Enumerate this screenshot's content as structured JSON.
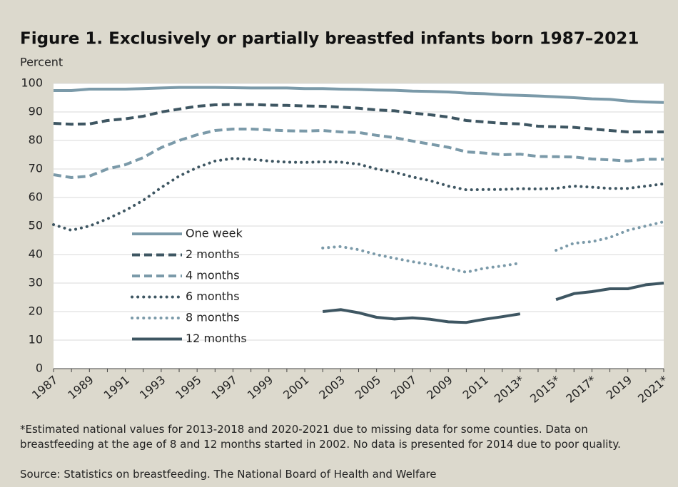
{
  "chart_data": {
    "type": "line",
    "title": "Figure 1. Exclusively or partially breastfed infants born 1987–2021",
    "y_label": "Percent",
    "categories": [
      "1987",
      null,
      "1989",
      null,
      "1991",
      null,
      "1993",
      null,
      "1995",
      null,
      "1997",
      null,
      "1999",
      null,
      "2001",
      null,
      "2003",
      null,
      "2005",
      null,
      "2007",
      null,
      "2009",
      null,
      "2011",
      null,
      "2013*",
      null,
      "2015*",
      null,
      "2017*",
      null,
      "2019",
      null,
      "2021*"
    ],
    "series": [
      {
        "name": "One week",
        "color": "#7b9aa9",
        "style": "solid",
        "values": [
          97.5,
          97.5,
          98,
          98,
          98,
          98.2,
          98.4,
          98.6,
          98.6,
          98.6,
          98.5,
          98.4,
          98.4,
          98.4,
          98.2,
          98.2,
          98,
          97.9,
          97.7,
          97.6,
          97.3,
          97.2,
          97,
          96.6,
          96.4,
          96,
          95.8,
          95.6,
          95.3,
          95,
          94.6,
          94.4,
          93.8,
          93.5,
          93.3
        ]
      },
      {
        "name": "2 months",
        "color": "#3e5662",
        "style": "dashed",
        "values": [
          86,
          85.7,
          85.8,
          87,
          87.6,
          88.5,
          90,
          91,
          92,
          92.5,
          92.6,
          92.6,
          92.4,
          92.3,
          92.1,
          92,
          91.7,
          91.3,
          90.7,
          90.4,
          89.6,
          89,
          88.2,
          87,
          86.5,
          86,
          85.8,
          85,
          84.8,
          84.6,
          84,
          83.5,
          83,
          83,
          83
        ]
      },
      {
        "name": "4 months",
        "color": "#7b9aa9",
        "style": "dashed",
        "values": [
          68,
          67,
          67.5,
          70,
          71.5,
          74,
          77.5,
          80,
          82,
          83.5,
          84,
          84,
          83.7,
          83.4,
          83.3,
          83.5,
          83,
          82.8,
          81.8,
          81,
          79.8,
          78.7,
          77.6,
          76,
          75.6,
          75,
          75.2,
          74.4,
          74.3,
          74.2,
          73.5,
          73.2,
          72.8,
          73.4,
          73.4
        ]
      },
      {
        "name": "6 months",
        "color": "#3e5662",
        "style": "dotted",
        "values": [
          50.5,
          48.5,
          50,
          52.5,
          55.5,
          59,
          63.5,
          67.5,
          70.5,
          72.8,
          73.7,
          73.4,
          72.8,
          72.4,
          72.3,
          72.5,
          72.4,
          71.7,
          70,
          68.9,
          67.2,
          65.9,
          64,
          62.7,
          62.8,
          62.8,
          63.1,
          63,
          63.2,
          64,
          63.6,
          63.2,
          63.2,
          64,
          64.8
        ]
      },
      {
        "name": "8 months",
        "color": "#7b9aa9",
        "style": "dotted",
        "values": [
          null,
          null,
          null,
          null,
          null,
          null,
          null,
          null,
          null,
          null,
          null,
          null,
          null,
          null,
          null,
          42.3,
          42.8,
          41.7,
          40,
          38.7,
          37.5,
          36.5,
          35.2,
          33.8,
          35.2,
          36,
          37,
          null,
          41.5,
          44,
          44.5,
          46,
          48.5,
          50,
          51.5
        ]
      },
      {
        "name": "12 months",
        "color": "#3e5662",
        "style": "solid",
        "values": [
          null,
          null,
          null,
          null,
          null,
          null,
          null,
          null,
          null,
          null,
          null,
          null,
          null,
          null,
          null,
          20,
          20.7,
          19.6,
          18,
          17.4,
          17.8,
          17.3,
          16.4,
          16.2,
          17.3,
          18.2,
          19.2,
          null,
          24.2,
          26.3,
          27,
          28,
          28,
          29.4,
          30
        ]
      }
    ],
    "ylim": [
      0,
      100
    ],
    "yticks": [
      0,
      10,
      20,
      30,
      40,
      50,
      60,
      70,
      80,
      90,
      100
    ],
    "grid": true,
    "note": "*Estimated national values for 2013-2018 and 2020-2021 due to missing data for some counties. Data on breastfeeding at the age of 8 and 12 months started in 2002. No data is presented for 2014 due to poor quality.",
    "source": "Source: Statistics on breastfeeding. The National Board of Health and Welfare"
  }
}
